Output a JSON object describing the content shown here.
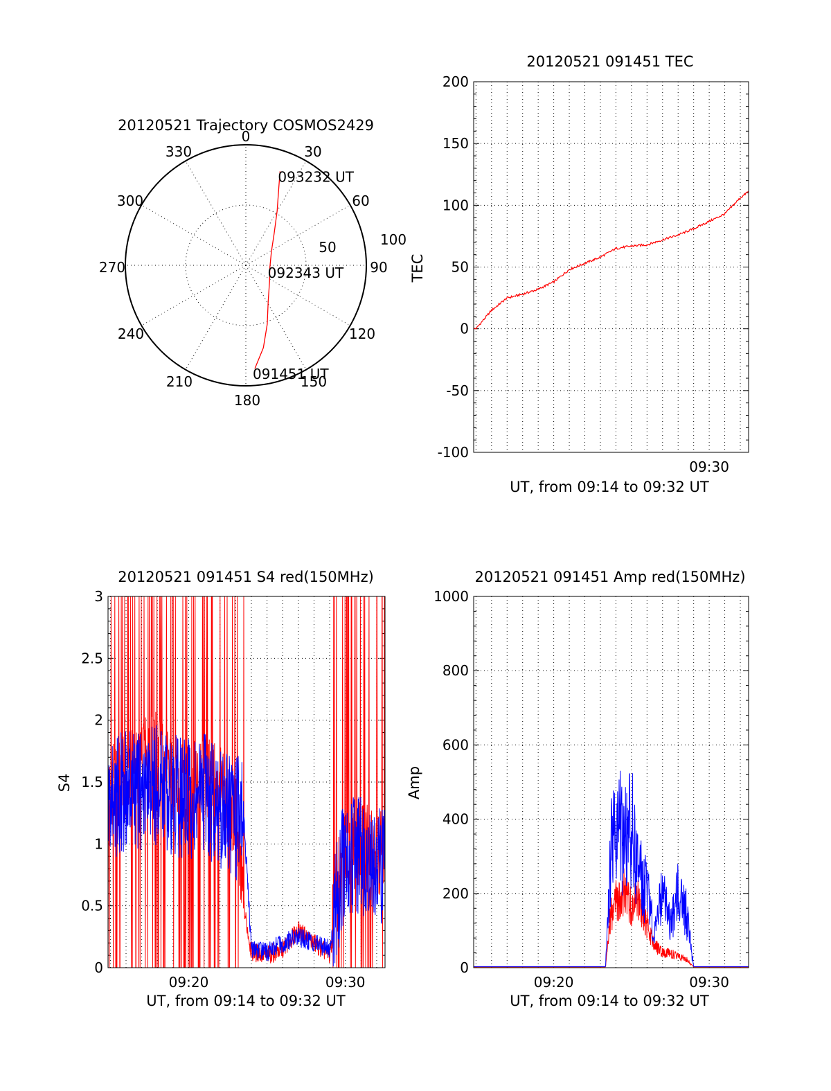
{
  "chart_data": [
    {
      "type": "polar",
      "title": "20120521 Trajectory COSMOS2429",
      "angle_labels": [
        "0",
        "30",
        "60",
        "90",
        "120",
        "150",
        "180",
        "210",
        "240",
        "270",
        "300",
        "330"
      ],
      "radial_labels": [
        "50",
        "100"
      ],
      "radial_range": [
        0,
        100
      ],
      "grid": true,
      "series": [
        {
          "color": "#ff0000",
          "points": [
            {
              "az": 175,
              "r": 86
            },
            {
              "az": 168,
              "r": 70
            },
            {
              "az": 160,
              "r": 52
            },
            {
              "az": 148,
              "r": 35
            },
            {
              "az": 125,
              "r": 24
            },
            {
              "az": 95,
              "r": 20
            },
            {
              "az": 62,
              "r": 24
            },
            {
              "az": 42,
              "r": 35
            },
            {
              "az": 30,
              "r": 52
            },
            {
              "az": 23,
              "r": 70
            },
            {
              "az": 20,
              "r": 83
            }
          ]
        }
      ],
      "annotations": [
        {
          "text": "093232 UT",
          "az": 20,
          "r": 83
        },
        {
          "text": "092343 UT",
          "az": 95,
          "r": 20
        },
        {
          "text": "091451 UT",
          "az": 175,
          "r": 86
        }
      ]
    },
    {
      "type": "line",
      "title": "20120521 091451 TEC",
      "xlabel": "UT, from 09:14 to 09:32 UT",
      "ylabel": "TEC",
      "xlim": [
        "09:14:51",
        "09:32:32"
      ],
      "ylim": [
        -100,
        200
      ],
      "y_ticks": [
        "-100",
        "-50",
        "0",
        "50",
        "100",
        "150",
        "200"
      ],
      "x_ticks": [
        {
          "label": "09:30",
          "value": "09:30"
        }
      ],
      "grid": true,
      "series": [
        {
          "color": "#ff0000",
          "x": [
            "09:15:00",
            "09:16:00",
            "09:17:00",
            "09:18:00",
            "09:19:00",
            "09:20:00",
            "09:21:00",
            "09:22:00",
            "09:23:00",
            "09:24:00",
            "09:25:00",
            "09:26:00",
            "09:27:00",
            "09:28:00",
            "09:29:00",
            "09:30:00",
            "09:31:00",
            "09:32:00",
            "09:32:30"
          ],
          "y": [
            0,
            15,
            25,
            28,
            32,
            38,
            48,
            53,
            58,
            65,
            67,
            68,
            72,
            76,
            81,
            87,
            93,
            106,
            111
          ]
        }
      ]
    },
    {
      "type": "line",
      "title": "20120521 091451 S4 red(150MHz)",
      "xlabel": "UT, from 09:14 to 09:32 UT",
      "ylabel": "S4",
      "xlim": [
        "09:14:51",
        "09:32:32"
      ],
      "ylim": [
        0,
        3
      ],
      "y_ticks": [
        "0",
        "0.5",
        "1",
        "1.5",
        "2",
        "2.5",
        "3"
      ],
      "x_ticks": [
        {
          "label": "09:20",
          "value": "09:20"
        },
        {
          "label": "09:30",
          "value": "09:30"
        }
      ],
      "grid": true,
      "series": [
        {
          "color": "#ff0000",
          "x": [
            "09:15:00",
            "09:16:00",
            "09:17:00",
            "09:18:00",
            "09:19:00",
            "09:20:00",
            "09:21:00",
            "09:22:00",
            "09:23:00",
            "09:23:30",
            "09:24:00",
            "09:25:00",
            "09:26:00",
            "09:27:00",
            "09:28:00",
            "09:29:00",
            "09:30:00",
            "09:31:00",
            "09:32:00",
            "09:32:30"
          ],
          "y": [
            1.3,
            1.4,
            1.5,
            1.6,
            1.4,
            1.3,
            1.4,
            1.3,
            1.1,
            0.5,
            0.13,
            0.1,
            0.15,
            0.3,
            0.2,
            0.1,
            0.9,
            0.85,
            0.8,
            0.8
          ]
        },
        {
          "color": "#0000ff",
          "x": [
            "09:15:00",
            "09:16:00",
            "09:17:00",
            "09:18:00",
            "09:19:00",
            "09:20:00",
            "09:21:00",
            "09:22:00",
            "09:23:00",
            "09:23:30",
            "09:24:00",
            "09:25:00",
            "09:26:00",
            "09:27:00",
            "09:28:00",
            "09:29:00",
            "09:30:00",
            "09:31:00",
            "09:32:00",
            "09:32:30"
          ],
          "y": [
            1.35,
            1.45,
            1.4,
            1.5,
            1.4,
            1.35,
            1.4,
            1.3,
            1.2,
            1.25,
            0.15,
            0.13,
            0.2,
            0.25,
            0.2,
            0.15,
            0.95,
            0.9,
            0.85,
            0.85
          ]
        }
      ]
    },
    {
      "type": "line",
      "title": "20120521 091451 Amp red(150MHz)",
      "xlabel": "UT, from 09:14 to 09:32 UT",
      "ylabel": "Amp",
      "xlim": [
        "09:14:51",
        "09:32:32"
      ],
      "ylim": [
        0,
        1000
      ],
      "y_ticks": [
        "0",
        "200",
        "400",
        "600",
        "800",
        "1000"
      ],
      "x_ticks": [
        {
          "label": "09:20",
          "value": "09:20"
        },
        {
          "label": "09:30",
          "value": "09:30"
        }
      ],
      "grid": true,
      "series": [
        {
          "color": "#ff0000",
          "x": [
            "09:15:00",
            "09:20:00",
            "09:23:20",
            "09:23:40",
            "09:24:00",
            "09:24:30",
            "09:25:00",
            "09:25:30",
            "09:26:00",
            "09:26:30",
            "09:27:00",
            "09:27:30",
            "09:28:00",
            "09:28:30",
            "09:29:00",
            "09:32:30"
          ],
          "y": [
            2,
            2,
            2,
            140,
            180,
            200,
            160,
            180,
            120,
            60,
            40,
            40,
            30,
            25,
            2,
            2
          ]
        },
        {
          "color": "#0000ff",
          "x": [
            "09:15:00",
            "09:20:00",
            "09:23:20",
            "09:23:40",
            "09:24:00",
            "09:24:30",
            "09:25:00",
            "09:25:30",
            "09:26:00",
            "09:26:30",
            "09:27:00",
            "09:27:30",
            "09:28:00",
            "09:28:30",
            "09:29:00",
            "09:32:30"
          ],
          "y": [
            3,
            3,
            3,
            300,
            420,
            330,
            380,
            260,
            200,
            100,
            220,
            110,
            200,
            150,
            3,
            3
          ]
        }
      ]
    }
  ]
}
